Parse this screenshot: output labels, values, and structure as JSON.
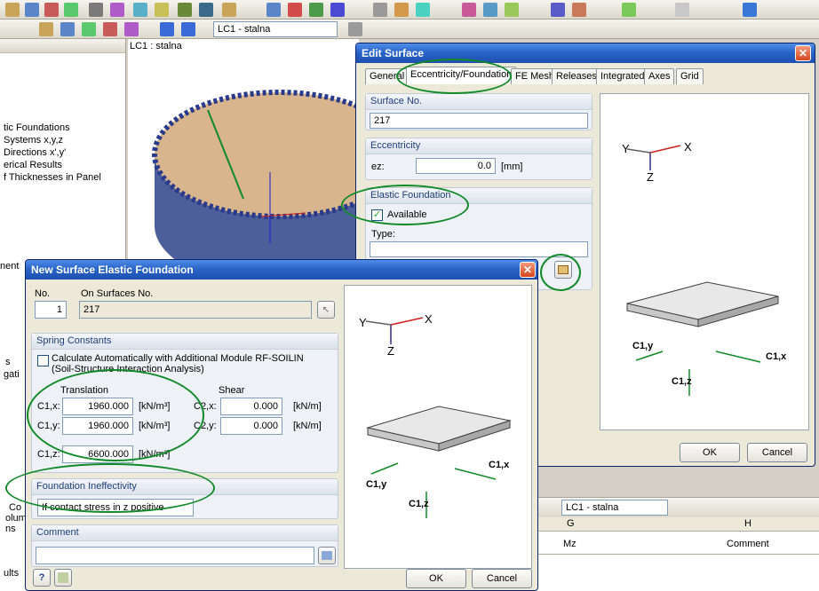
{
  "toolbar": {
    "loadcase": "LC1 - stalna"
  },
  "nav_panel": {
    "items": [
      "tic Foundations",
      " Systems x,y,z",
      "Directions x',y'",
      "erical Results",
      "f Thicknesses in Panel"
    ],
    "frag_nent": "nent",
    "frag_s": "s",
    "frag_gati": "gati",
    "frag_co": "Co",
    "frag_olum": "olum",
    "frag_ns": "ns",
    "frag_ults": "ults"
  },
  "viewport": {
    "label": "LC1 : stalna"
  },
  "edit_surface": {
    "title": "Edit Surface",
    "tabs": [
      "General",
      "Eccentricity/Foundation",
      "FE Mesh",
      "Releases",
      "Integrated",
      "Axes",
      "Grid"
    ],
    "surface_no_label": "Surface No.",
    "surface_no": "217",
    "eccentricity_label": "Eccentricity",
    "ez_label": "ez:",
    "ez_value": "0.0",
    "ez_unit": "[mm]",
    "elastic_label": "Elastic Foundation",
    "available_label": "Available",
    "type_label": "Type:",
    "ok": "OK",
    "cancel": "Cancel"
  },
  "elastic_dialog": {
    "title": "New Surface Elastic Foundation",
    "no_label": "No.",
    "no_value": "1",
    "on_surfaces_label": "On Surfaces No.",
    "on_surfaces_value": "217",
    "spring_label": "Spring Constants",
    "auto_label_1": "Calculate Automatically with Additional Module RF-SOILIN",
    "auto_label_2": "(Soil-Structure Interaction Analysis)",
    "translation_label": "Translation",
    "shear_label": "Shear",
    "c1x_label": "C1,x:",
    "c1x": "1960.000",
    "c1y_label": "C1,y:",
    "c1y": "1960.000",
    "c1z_label": "C1,z:",
    "c1z": "6600.000",
    "unit_trans": "[kN/m³]",
    "c2x_label": "C2,x:",
    "c2x": "0.000",
    "c2y_label": "C2,y:",
    "c2y": "0.000",
    "unit_shear": "[kN/m]",
    "ineff_label": "Foundation Ineffectivity",
    "ineff_value": "If contact stress in z positive",
    "comment_label": "Comment",
    "ok": "OK",
    "cancel": "Cancel"
  },
  "diagram": {
    "x": "X",
    "y": "Y",
    "z": "Z",
    "c1x": "C1,x",
    "c1y": "C1,y",
    "c1z": "C1,z"
  },
  "table": {
    "loadcase": "LC1 - stalna",
    "col_g": "G",
    "col_h": "H",
    "mz": "Mz",
    "comment": "Comment"
  },
  "colors": {
    "accent_green": "#128a2a",
    "title_blue": "#2a64c8"
  }
}
